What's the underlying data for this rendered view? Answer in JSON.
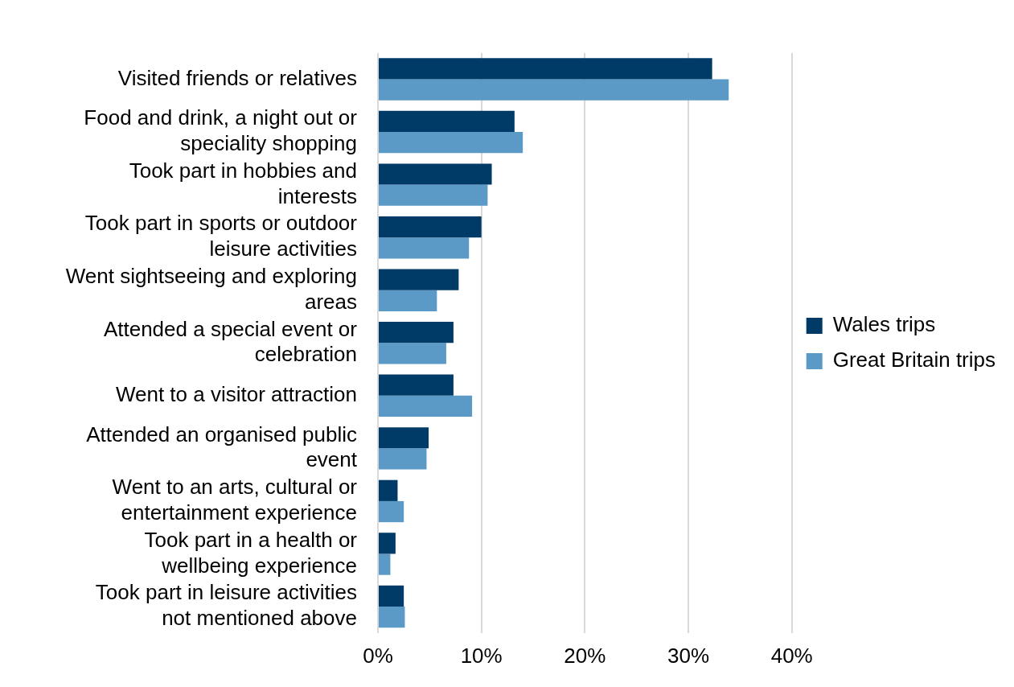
{
  "chart_data": {
    "type": "bar",
    "orientation": "horizontal",
    "categories": [
      "Visited friends or relatives",
      "Food and drink, a night out or speciality shopping",
      "Took part in hobbies and interests",
      "Took part in sports or outdoor leisure activities",
      "Went sightseeing and exploring areas",
      "Attended a special event or celebration",
      "Went to a visitor attraction",
      "Attended an organised public event",
      "Went to an arts, cultural or entertainment experience",
      "Took part in a health or wellbeing experience",
      "Took part in leisure activities not mentioned above"
    ],
    "series": [
      {
        "name": "Wales trips",
        "color": "#003b68",
        "values": [
          32.3,
          13.2,
          11.0,
          10.0,
          7.8,
          7.3,
          7.3,
          4.9,
          1.9,
          1.7,
          2.5
        ]
      },
      {
        "name": "Great Britain trips",
        "color": "#5b9ac6",
        "values": [
          33.9,
          14.0,
          10.6,
          8.8,
          5.7,
          6.6,
          9.1,
          4.7,
          2.5,
          1.2,
          2.6
        ]
      }
    ],
    "xlim": [
      0,
      40
    ],
    "xticks": [
      {
        "value": 0,
        "label": "0%"
      },
      {
        "value": 10,
        "label": "10%"
      },
      {
        "value": 20,
        "label": "20%"
      },
      {
        "value": 30,
        "label": "30%"
      },
      {
        "value": 40,
        "label": "40%"
      }
    ],
    "grid": "x",
    "legend": "right"
  }
}
